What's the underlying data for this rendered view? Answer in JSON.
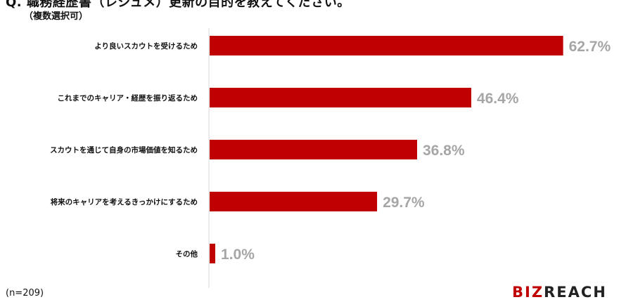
{
  "header": {
    "title": "Q. 職務経歴書（レジュメ）更新の目的を教えてください。",
    "note": "（複数選択可）"
  },
  "footer": {
    "sample_size": "(n=209)",
    "logo_biz": "BIZ",
    "logo_reach": "REACH"
  },
  "colors": {
    "bar": "#c00000",
    "value_label": "#a6a6a6",
    "axis": "#d9d9d9"
  },
  "chart_data": {
    "type": "bar",
    "orientation": "horizontal",
    "categories": [
      "より良いスカウトを受けるため",
      "これまでのキャリア・経歴を振り返るため",
      "スカウトを通じて自身の市場価値を知るため",
      "将来のキャリアを考えるきっかけにするため",
      "その他"
    ],
    "values": [
      62.7,
      46.4,
      36.8,
      29.7,
      1.0
    ],
    "value_labels": [
      "62.7%",
      "46.4%",
      "36.8%",
      "29.7%",
      "1.0%"
    ],
    "xlim": [
      0,
      63
    ],
    "grid": false,
    "legend": "none"
  }
}
